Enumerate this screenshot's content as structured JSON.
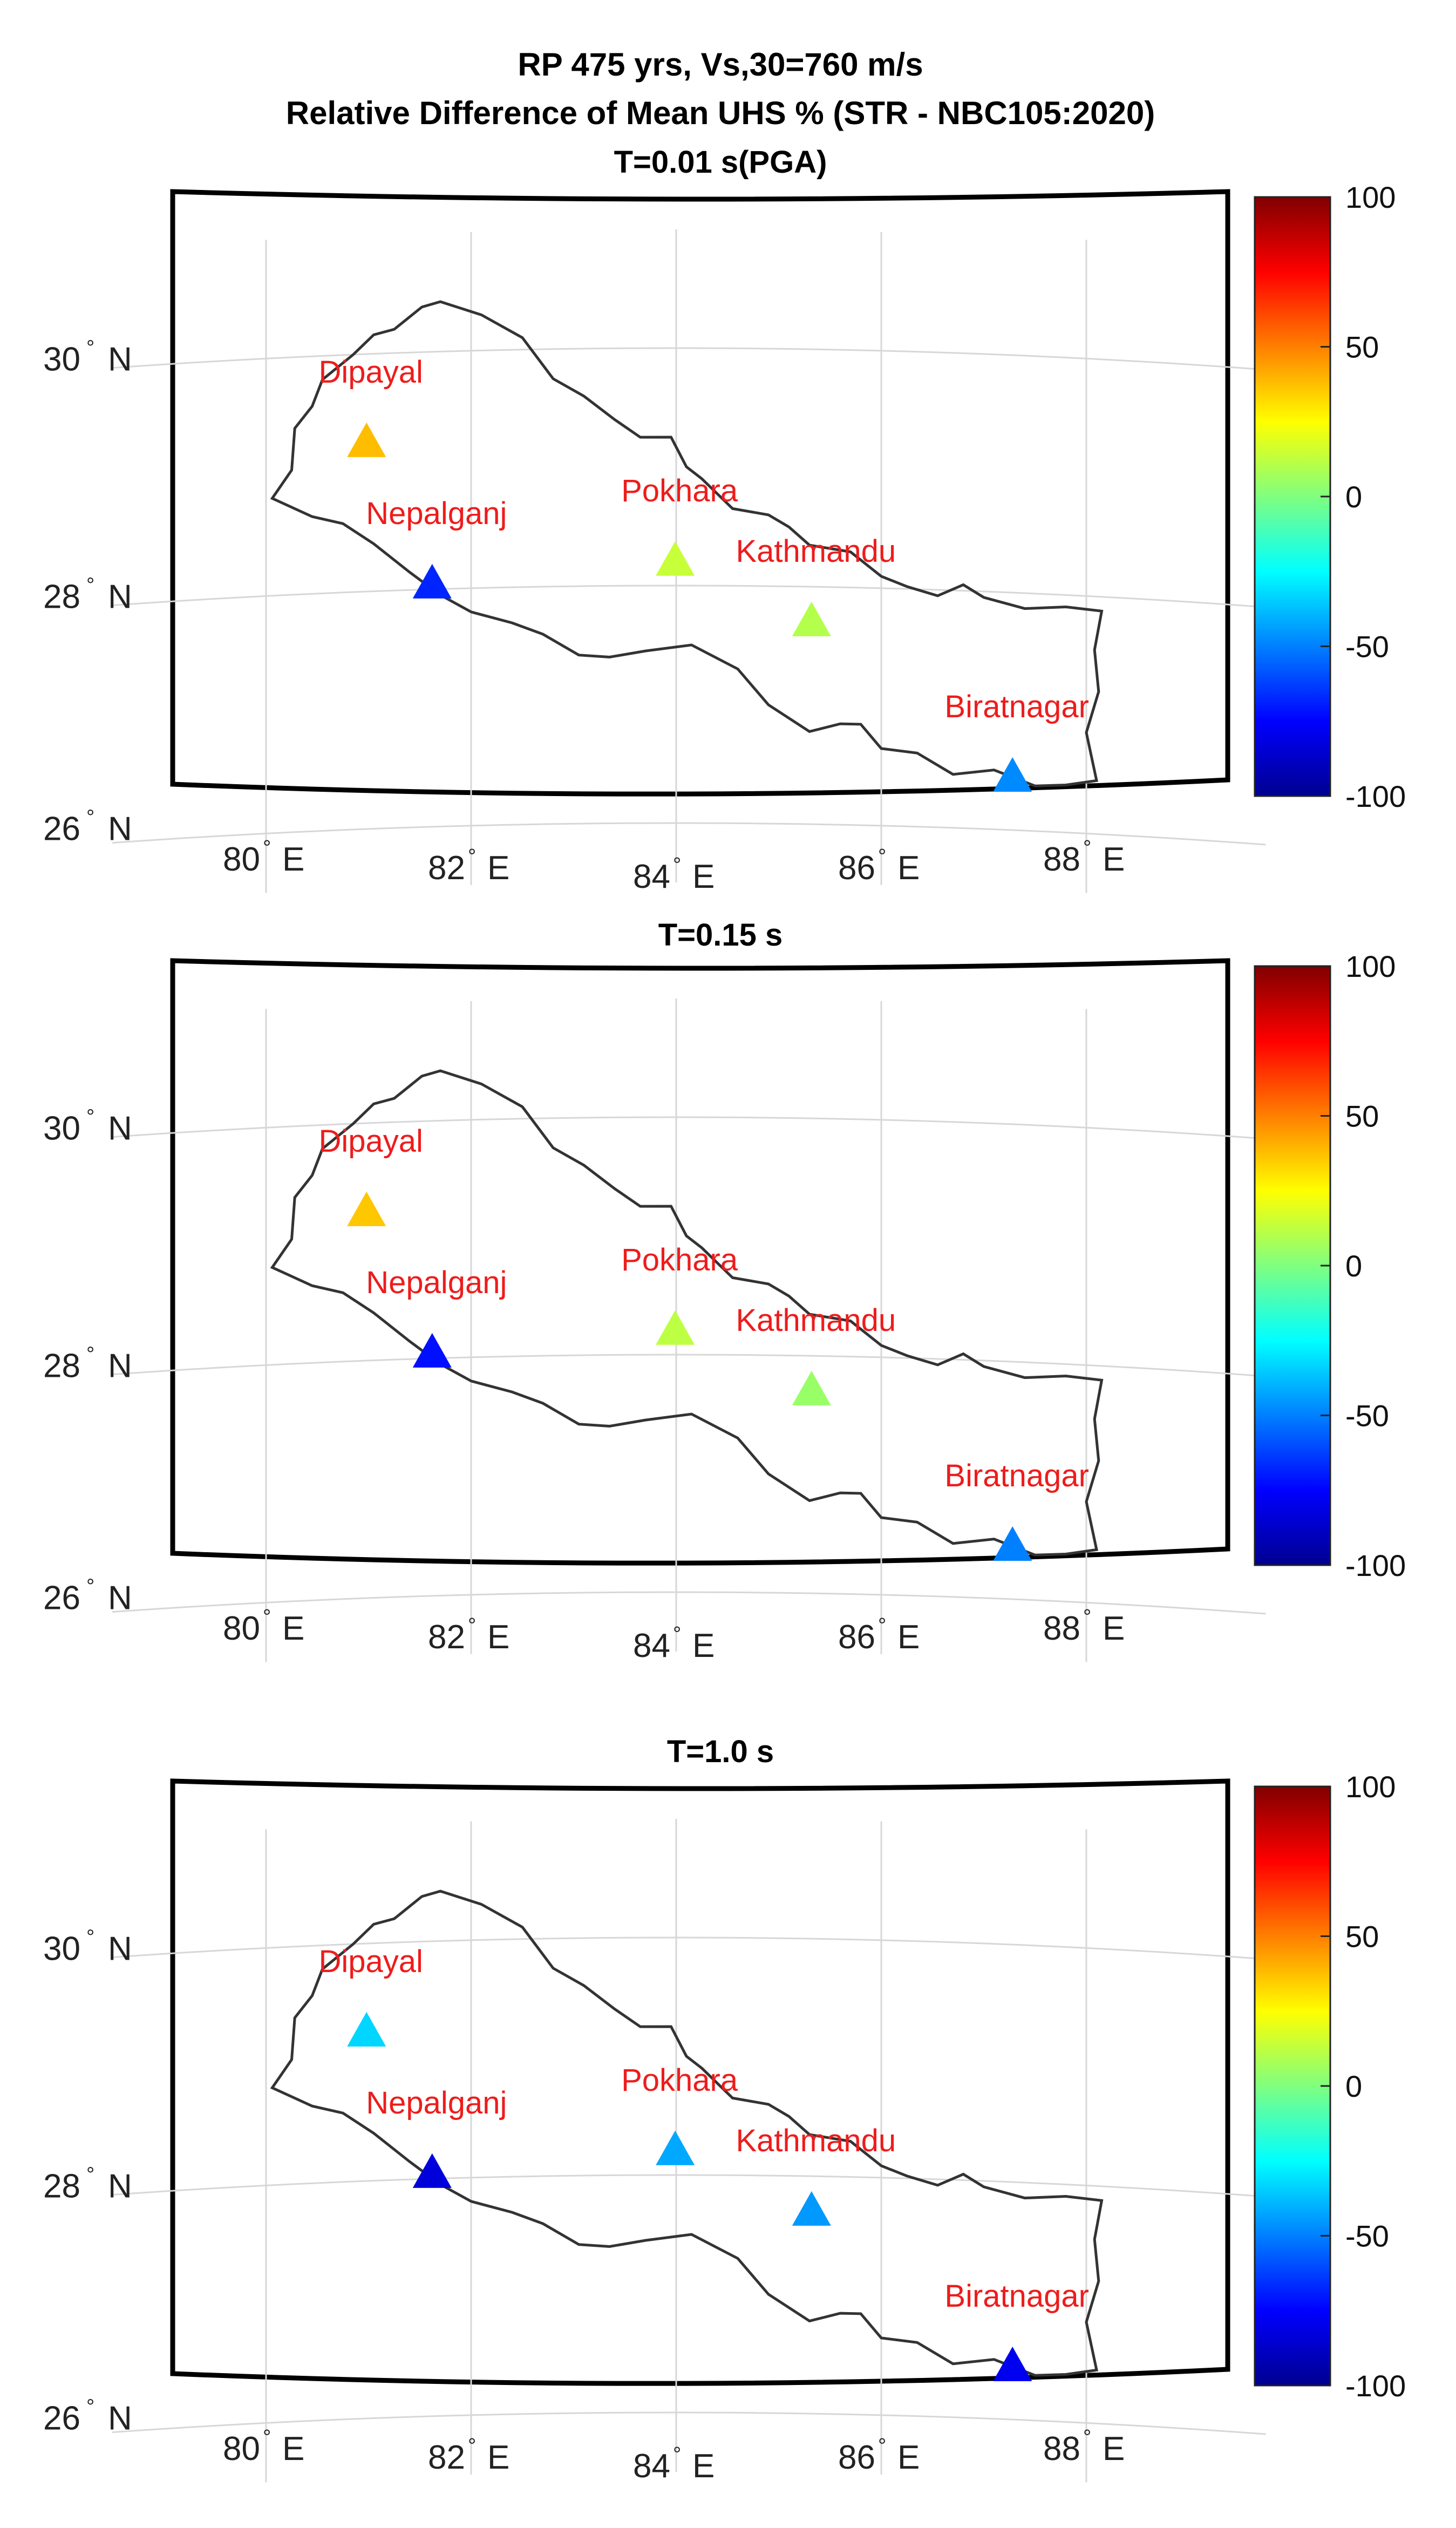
{
  "figure": {
    "title_line1": "RP 475 yrs, Vs,30=760 m/s",
    "title_line2": "Relative Difference of Mean UHS % (STR - NBC105:2020)"
  },
  "axes_ticks": {
    "lat_labels": [
      "30",
      "28",
      "26"
    ],
    "lat_values": [
      30,
      28,
      26
    ],
    "lat_suffix": "N",
    "lon_labels": [
      "80",
      "82",
      "84",
      "86",
      "88"
    ],
    "lon_values": [
      80,
      82,
      84,
      86,
      88
    ],
    "lon_suffix": "E"
  },
  "colorbar": {
    "colormap": "jet",
    "range": [
      -100,
      100
    ],
    "tick_labels": [
      "100",
      "50",
      "0",
      "-50",
      "-100"
    ],
    "tick_values": [
      100,
      50,
      0,
      -50,
      -100
    ]
  },
  "cities": [
    {
      "name": "Dipayal",
      "lon": 80.98,
      "lat": 29.26
    },
    {
      "name": "Nepalganj",
      "lon": 81.62,
      "lat": 28.05
    },
    {
      "name": "Pokhara",
      "lon": 83.99,
      "lat": 28.21
    },
    {
      "name": "Kathmandu",
      "lon": 85.32,
      "lat": 27.71
    },
    {
      "name": "Biratnagar",
      "lon": 87.28,
      "lat": 26.45
    }
  ],
  "chart_data": [
    {
      "type": "map",
      "title": "T=0.01 s(PGA)",
      "metric": "Relative Difference of Mean UHS %",
      "values": {
        "Dipayal": 38,
        "Nepalganj": -68,
        "Pokhara": 14,
        "Kathmandu": 10,
        "Biratnagar": -48
      }
    },
    {
      "type": "map",
      "title": "T=0.15 s",
      "metric": "Relative Difference of Mean UHS %",
      "values": {
        "Dipayal": 36,
        "Nepalganj": -72,
        "Pokhara": 12,
        "Kathmandu": 5,
        "Biratnagar": -50
      }
    },
    {
      "type": "map",
      "title": "T=1.0 s",
      "metric": "Relative Difference of Mean UHS %",
      "values": {
        "Dipayal": -33,
        "Nepalganj": -82,
        "Pokhara": -42,
        "Kathmandu": -45,
        "Biratnagar": -78
      }
    }
  ]
}
